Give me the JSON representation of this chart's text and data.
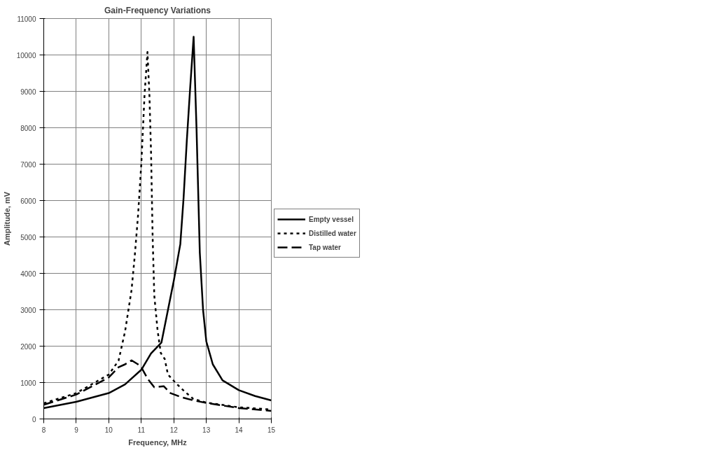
{
  "chart_data": {
    "type": "line",
    "title": "Gain-Frequency Variations",
    "xlabel": "Frequency, MHz",
    "ylabel": "Amplitude, mV",
    "xlim": [
      8,
      15
    ],
    "ylim": [
      0,
      11000
    ],
    "xticks": [
      8,
      9,
      10,
      11,
      12,
      13,
      14,
      15
    ],
    "yticks": [
      0,
      1000,
      2000,
      3000,
      4000,
      5000,
      6000,
      7000,
      8000,
      9000,
      10000,
      11000
    ],
    "grid": true,
    "legend": "right",
    "series": [
      {
        "name": "Empty vessel",
        "color": "#000000",
        "line_style": "solid",
        "x": [
          8,
          9,
          10,
          10.5,
          11,
          11.3,
          11.62,
          12,
          12.2,
          12.3,
          12.4,
          12.5,
          12.61,
          12.7,
          12.8,
          12.9,
          13,
          13.2,
          13.5,
          14,
          14.5,
          15
        ],
        "values": [
          300,
          470,
          710,
          950,
          1350,
          1800,
          2100,
          3800,
          4800,
          6060,
          7640,
          9050,
          10500,
          7950,
          4570,
          3000,
          2130,
          1500,
          1060,
          790,
          630,
          510
        ]
      },
      {
        "name": "Distilled water",
        "color": "#000000",
        "line_style": "dotted",
        "x": [
          8,
          9,
          10,
          10.3,
          10.5,
          10.7,
          10.8,
          10.9,
          11,
          11.1,
          11.19,
          11.25,
          11.3,
          11.35,
          11.4,
          11.5,
          11.6,
          11.72,
          11.82,
          12.07,
          12.29,
          12.6,
          13,
          14,
          15
        ],
        "values": [
          430,
          710,
          1220,
          1600,
          2400,
          3540,
          4490,
          5590,
          7000,
          8900,
          10080,
          8900,
          7320,
          4960,
          3390,
          2440,
          1810,
          1650,
          1220,
          980,
          790,
          550,
          450,
          320,
          260
        ]
      },
      {
        "name": "Tap water",
        "color": "#000000",
        "line_style": "dashed",
        "x": [
          8,
          9,
          10,
          10.3,
          10.5,
          10.7,
          10.9,
          11,
          11.2,
          11.4,
          11.69,
          11.9,
          12.26,
          12.6,
          13,
          14,
          15
        ],
        "values": [
          390,
          670,
          1140,
          1420,
          1500,
          1610,
          1500,
          1420,
          1100,
          870,
          900,
          710,
          590,
          510,
          440,
          300,
          220
        ]
      }
    ]
  }
}
